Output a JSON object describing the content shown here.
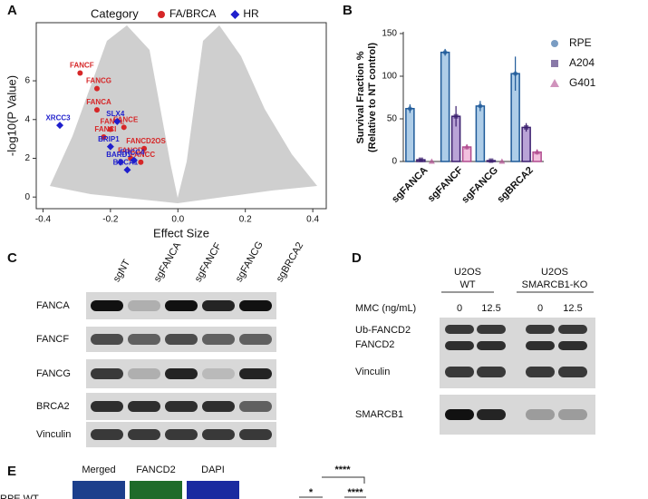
{
  "panel_labels": [
    "A",
    "B",
    "C",
    "D",
    "E"
  ],
  "chart_data": [
    {
      "type": "scatter",
      "legend_title": "Category",
      "xlabel": "Effect Size",
      "ylabel": "-log10(P Value)",
      "xlim": [
        -0.42,
        0.44
      ],
      "xticks": [
        -0.4,
        -0.2,
        {
          "value": 0,
          "label": "0.0"
        },
        0.2,
        0.4
      ],
      "ylim": [
        -0.6,
        9.0
      ],
      "yticks": [
        0,
        2,
        4,
        6
      ],
      "legend": "top",
      "series": [
        {
          "name": "FA/BRCA",
          "color": "#d62728",
          "marker": "circle",
          "point_labels": [
            "FANCF",
            "FANCG",
            "FANCA",
            "FANCE",
            "FANCL",
            "FANCI",
            "FANCD2OS",
            "FANCD2",
            "FANCC"
          ],
          "x": [
            -0.29,
            -0.24,
            -0.24,
            -0.16,
            -0.2,
            -0.22,
            -0.1,
            -0.14,
            -0.11
          ],
          "values": [
            6.4,
            5.6,
            4.5,
            3.6,
            3.5,
            3.1,
            2.5,
            2.0,
            1.8
          ]
        },
        {
          "name": "HR",
          "color": "#1f1fcc",
          "marker": "diamond",
          "point_labels": [
            "XRCC3",
            "SLX4",
            "BRIP1",
            "ERCC4",
            "BARD1",
            "BRCA1"
          ],
          "x": [
            -0.35,
            -0.18,
            -0.2,
            -0.13,
            -0.17,
            -0.15
          ],
          "values": [
            3.7,
            3.9,
            2.6,
            1.9,
            1.8,
            1.4
          ]
        }
      ]
    },
    {
      "type": "bar",
      "ylabel": [
        "Survival Fraction %",
        "(Relative to NT control)"
      ],
      "categories": [
        "sgFANCA",
        "sgFANCF",
        "sgFANCG",
        "sgBRCA2"
      ],
      "ylim": [
        0,
        150
      ],
      "yticks": [
        0,
        50,
        100,
        150
      ],
      "legend": "right",
      "series": [
        {
          "name": "RPE",
          "color": "#aecde8",
          "edge": "#1f5a99",
          "marker": "circle",
          "values": [
            62,
            128,
            65,
            103
          ],
          "errors": [
            5,
            4,
            6,
            20
          ]
        },
        {
          "name": "A204",
          "color": "#b9a3d6",
          "edge": "#3b1f6e",
          "marker": "square",
          "values": [
            2,
            53,
            1,
            40
          ],
          "errors": [
            1,
            12,
            1,
            5
          ]
        },
        {
          "name": "G401",
          "color": "#f2c0de",
          "edge": "#b04b8f",
          "marker": "triangle",
          "values": [
            0,
            17,
            0,
            11
          ],
          "errors": [
            0,
            3,
            0,
            3
          ]
        }
      ]
    }
  ],
  "blot_c": {
    "lanes": [
      "sgNT",
      "sgFANCA",
      "sgFANCF",
      "sgFANCG",
      "sgBRCA2"
    ],
    "rows": [
      "FANCA",
      "FANCF",
      "FANCG",
      "BRCA2",
      "Vinculin"
    ]
  },
  "blot_d": {
    "groups": [
      [
        "U2OS",
        "WT"
      ],
      [
        "U2OS",
        "SMARCB1-KO"
      ]
    ],
    "treatment": "MMC (ng/mL)",
    "doses": [
      0,
      12.5,
      0,
      12.5
    ],
    "rows": [
      [
        "Ub-FANCD2",
        "FANCD2"
      ],
      [
        "Vinculin"
      ],
      [
        "SMARCB1"
      ]
    ]
  },
  "panel_e": {
    "channels": [
      "Merged",
      "FANCD2",
      "DAPI"
    ],
    "row": "RPE WT",
    "significance": [
      "****",
      "*",
      "****"
    ]
  }
}
